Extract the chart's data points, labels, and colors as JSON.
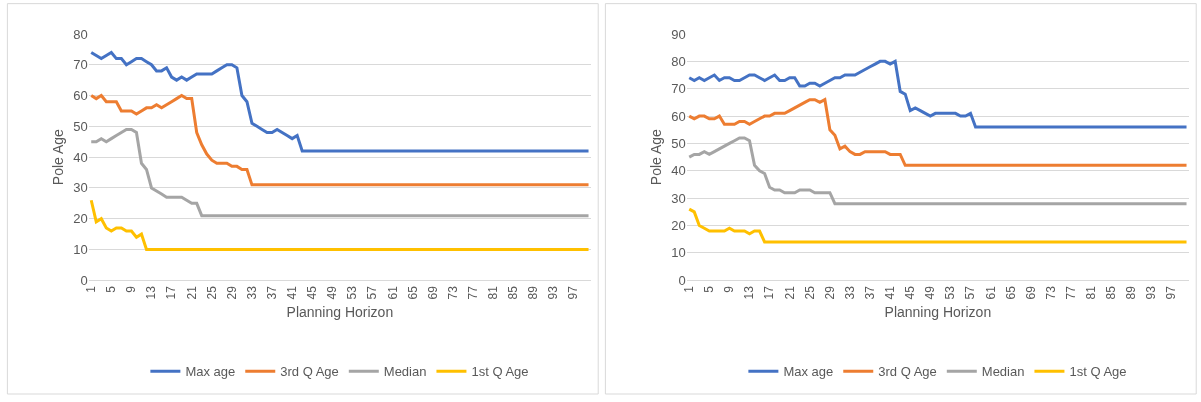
{
  "chart_data": [
    {
      "type": "line",
      "xlabel": "Planning Horizon",
      "ylabel": "Pole Age",
      "grid": "y",
      "legend": "bottom",
      "marker": "none",
      "line_style": "solid",
      "x": [
        1,
        2,
        3,
        4,
        5,
        6,
        7,
        8,
        9,
        10,
        11,
        12,
        13,
        14,
        15,
        16,
        17,
        18,
        19,
        20,
        21,
        22,
        23,
        24,
        25,
        26,
        27,
        28,
        29,
        30,
        31,
        32,
        33,
        34,
        35,
        36,
        37,
        38,
        39,
        40,
        41,
        42,
        43,
        44,
        45,
        46,
        47,
        48,
        49,
        50,
        51,
        52,
        53,
        54,
        55,
        56,
        57,
        58,
        59,
        60,
        61,
        62,
        63,
        64,
        65,
        66,
        67,
        68,
        69,
        70,
        71,
        72,
        73,
        74,
        75,
        76,
        77,
        78,
        79,
        80,
        81,
        82,
        83,
        84,
        85,
        86,
        87,
        88,
        89,
        90,
        91,
        92,
        93,
        94,
        95,
        96,
        97,
        98,
        99,
        100
      ],
      "xlim": [
        0.5,
        100.5
      ],
      "xticks": [
        1,
        5,
        9,
        13,
        17,
        21,
        25,
        29,
        33,
        37,
        41,
        45,
        49,
        53,
        57,
        61,
        65,
        69,
        73,
        77,
        81,
        85,
        89,
        93,
        97
      ],
      "ylim": [
        0,
        80
      ],
      "yticks": [
        0,
        10,
        20,
        30,
        40,
        50,
        60,
        70,
        80
      ],
      "series": [
        {
          "name": "Max age",
          "color": "#4472c4",
          "values": [
            74,
            73,
            72,
            73,
            74,
            72,
            72,
            70,
            71,
            72,
            72,
            71,
            70,
            68,
            68,
            69,
            66,
            65,
            66,
            65,
            66,
            67,
            67,
            67,
            67,
            68,
            69,
            70,
            70,
            69,
            60,
            58,
            51,
            50,
            49,
            48,
            48,
            49,
            48,
            47,
            46,
            47,
            42,
            42,
            42,
            42,
            42,
            42,
            42,
            42,
            42,
            42,
            42,
            42,
            42,
            42,
            42,
            42,
            42,
            42,
            42,
            42,
            42,
            42,
            42,
            42,
            42,
            42,
            42,
            42,
            42,
            42,
            42,
            42,
            42,
            42,
            42,
            42,
            42,
            42,
            42,
            42,
            42,
            42,
            42,
            42,
            42,
            42,
            42,
            42,
            42,
            42,
            42,
            42,
            42,
            42,
            42,
            42,
            42,
            42
          ]
        },
        {
          "name": "3rd Q Age",
          "color": "#ed7d31",
          "values": [
            60,
            59,
            60,
            58,
            58,
            58,
            55,
            55,
            55,
            54,
            55,
            56,
            56,
            57,
            56,
            57,
            58,
            59,
            60,
            59,
            59,
            48,
            44,
            41,
            39,
            38,
            38,
            38,
            37,
            37,
            36,
            36,
            31,
            31,
            31,
            31,
            31,
            31,
            31,
            31,
            31,
            31,
            31,
            31,
            31,
            31,
            31,
            31,
            31,
            31,
            31,
            31,
            31,
            31,
            31,
            31,
            31,
            31,
            31,
            31,
            31,
            31,
            31,
            31,
            31,
            31,
            31,
            31,
            31,
            31,
            31,
            31,
            31,
            31,
            31,
            31,
            31,
            31,
            31,
            31,
            31,
            31,
            31,
            31,
            31,
            31,
            31,
            31,
            31,
            31,
            31,
            31,
            31,
            31,
            31,
            31,
            31,
            31,
            31,
            31
          ]
        },
        {
          "name": "Median",
          "color": "#a5a5a5",
          "values": [
            45,
            45,
            46,
            45,
            46,
            47,
            48,
            49,
            49,
            48,
            38,
            36,
            30,
            29,
            28,
            27,
            27,
            27,
            27,
            26,
            25,
            25,
            21,
            21,
            21,
            21,
            21,
            21,
            21,
            21,
            21,
            21,
            21,
            21,
            21,
            21,
            21,
            21,
            21,
            21,
            21,
            21,
            21,
            21,
            21,
            21,
            21,
            21,
            21,
            21,
            21,
            21,
            21,
            21,
            21,
            21,
            21,
            21,
            21,
            21,
            21,
            21,
            21,
            21,
            21,
            21,
            21,
            21,
            21,
            21,
            21,
            21,
            21,
            21,
            21,
            21,
            21,
            21,
            21,
            21,
            21,
            21,
            21,
            21,
            21,
            21,
            21,
            21,
            21,
            21,
            21,
            21,
            21,
            21,
            21,
            21,
            21,
            21,
            21,
            21
          ]
        },
        {
          "name": "1st Q Age",
          "color": "#ffc000",
          "values": [
            26,
            19,
            20,
            17,
            16,
            17,
            17,
            16,
            16,
            14,
            15,
            10,
            10,
            10,
            10,
            10,
            10,
            10,
            10,
            10,
            10,
            10,
            10,
            10,
            10,
            10,
            10,
            10,
            10,
            10,
            10,
            10,
            10,
            10,
            10,
            10,
            10,
            10,
            10,
            10,
            10,
            10,
            10,
            10,
            10,
            10,
            10,
            10,
            10,
            10,
            10,
            10,
            10,
            10,
            10,
            10,
            10,
            10,
            10,
            10,
            10,
            10,
            10,
            10,
            10,
            10,
            10,
            10,
            10,
            10,
            10,
            10,
            10,
            10,
            10,
            10,
            10,
            10,
            10,
            10,
            10,
            10,
            10,
            10,
            10,
            10,
            10,
            10,
            10,
            10,
            10,
            10,
            10,
            10,
            10,
            10,
            10,
            10,
            10,
            10
          ]
        }
      ]
    },
    {
      "type": "line",
      "xlabel": "Planning Horizon",
      "ylabel": "Pole Age",
      "grid": "y",
      "legend": "bottom",
      "marker": "none",
      "line_style": "solid",
      "x": [
        1,
        2,
        3,
        4,
        5,
        6,
        7,
        8,
        9,
        10,
        11,
        12,
        13,
        14,
        15,
        16,
        17,
        18,
        19,
        20,
        21,
        22,
        23,
        24,
        25,
        26,
        27,
        28,
        29,
        30,
        31,
        32,
        33,
        34,
        35,
        36,
        37,
        38,
        39,
        40,
        41,
        42,
        43,
        44,
        45,
        46,
        47,
        48,
        49,
        50,
        51,
        52,
        53,
        54,
        55,
        56,
        57,
        58,
        59,
        60,
        61,
        62,
        63,
        64,
        65,
        66,
        67,
        68,
        69,
        70,
        71,
        72,
        73,
        74,
        75,
        76,
        77,
        78,
        79,
        80,
        81,
        82,
        83,
        84,
        85,
        86,
        87,
        88,
        89,
        90,
        91,
        92,
        93,
        94,
        95,
        96,
        97,
        98,
        99,
        100
      ],
      "xlim": [
        0.5,
        100.5
      ],
      "xticks": [
        1,
        5,
        9,
        13,
        17,
        21,
        25,
        29,
        33,
        37,
        41,
        45,
        49,
        53,
        57,
        61,
        65,
        69,
        73,
        77,
        81,
        85,
        89,
        93,
        97
      ],
      "ylim": [
        0,
        90
      ],
      "yticks": [
        0,
        10,
        20,
        30,
        40,
        50,
        60,
        70,
        80,
        90
      ],
      "series": [
        {
          "name": "Max age",
          "color": "#4472c4",
          "values": [
            74,
            73,
            74,
            73,
            74,
            75,
            73,
            74,
            74,
            73,
            73,
            74,
            75,
            75,
            74,
            73,
            74,
            75,
            73,
            73,
            74,
            74,
            71,
            71,
            72,
            72,
            71,
            72,
            73,
            74,
            74,
            75,
            75,
            75,
            76,
            77,
            78,
            79,
            80,
            80,
            79,
            80,
            69,
            68,
            62,
            63,
            62,
            61,
            60,
            61,
            61,
            61,
            61,
            61,
            60,
            60,
            61,
            56,
            56,
            56,
            56,
            56,
            56,
            56,
            56,
            56,
            56,
            56,
            56,
            56,
            56,
            56,
            56,
            56,
            56,
            56,
            56,
            56,
            56,
            56,
            56,
            56,
            56,
            56,
            56,
            56,
            56,
            56,
            56,
            56,
            56,
            56,
            56,
            56,
            56,
            56,
            56,
            56,
            56,
            56
          ]
        },
        {
          "name": "3rd Q Age",
          "color": "#ed7d31",
          "values": [
            60,
            59,
            60,
            60,
            59,
            59,
            60,
            57,
            57,
            57,
            58,
            58,
            57,
            58,
            59,
            60,
            60,
            61,
            61,
            61,
            62,
            63,
            64,
            65,
            66,
            66,
            65,
            66,
            55,
            53,
            48,
            49,
            47,
            46,
            46,
            47,
            47,
            47,
            47,
            47,
            46,
            46,
            46,
            42,
            42,
            42,
            42,
            42,
            42,
            42,
            42,
            42,
            42,
            42,
            42,
            42,
            42,
            42,
            42,
            42,
            42,
            42,
            42,
            42,
            42,
            42,
            42,
            42,
            42,
            42,
            42,
            42,
            42,
            42,
            42,
            42,
            42,
            42,
            42,
            42,
            42,
            42,
            42,
            42,
            42,
            42,
            42,
            42,
            42,
            42,
            42,
            42,
            42,
            42,
            42,
            42,
            42,
            42,
            42,
            42
          ]
        },
        {
          "name": "Median",
          "color": "#a5a5a5",
          "values": [
            45,
            46,
            46,
            47,
            46,
            47,
            48,
            49,
            50,
            51,
            52,
            52,
            51,
            42,
            40,
            39,
            34,
            33,
            33,
            32,
            32,
            32,
            33,
            33,
            33,
            32,
            32,
            32,
            32,
            28,
            28,
            28,
            28,
            28,
            28,
            28,
            28,
            28,
            28,
            28,
            28,
            28,
            28,
            28,
            28,
            28,
            28,
            28,
            28,
            28,
            28,
            28,
            28,
            28,
            28,
            28,
            28,
            28,
            28,
            28,
            28,
            28,
            28,
            28,
            28,
            28,
            28,
            28,
            28,
            28,
            28,
            28,
            28,
            28,
            28,
            28,
            28,
            28,
            28,
            28,
            28,
            28,
            28,
            28,
            28,
            28,
            28,
            28,
            28,
            28,
            28,
            28,
            28,
            28,
            28,
            28,
            28,
            28,
            28,
            28
          ]
        },
        {
          "name": "1st Q Age",
          "color": "#ffc000",
          "values": [
            26,
            25,
            20,
            19,
            18,
            18,
            18,
            18,
            19,
            18,
            18,
            18,
            17,
            18,
            18,
            14,
            14,
            14,
            14,
            14,
            14,
            14,
            14,
            14,
            14,
            14,
            14,
            14,
            14,
            14,
            14,
            14,
            14,
            14,
            14,
            14,
            14,
            14,
            14,
            14,
            14,
            14,
            14,
            14,
            14,
            14,
            14,
            14,
            14,
            14,
            14,
            14,
            14,
            14,
            14,
            14,
            14,
            14,
            14,
            14,
            14,
            14,
            14,
            14,
            14,
            14,
            14,
            14,
            14,
            14,
            14,
            14,
            14,
            14,
            14,
            14,
            14,
            14,
            14,
            14,
            14,
            14,
            14,
            14,
            14,
            14,
            14,
            14,
            14,
            14,
            14,
            14,
            14,
            14,
            14,
            14,
            14,
            14,
            14,
            14
          ]
        }
      ]
    }
  ]
}
